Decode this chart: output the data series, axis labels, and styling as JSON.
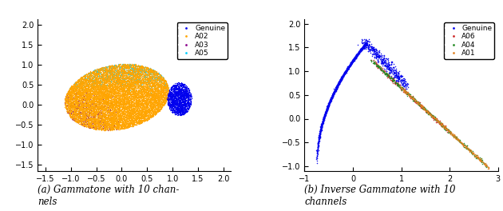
{
  "plot1": {
    "xlim": [
      -1.65,
      2.15
    ],
    "ylim": [
      -1.65,
      2.15
    ],
    "xticks": [
      -1.5,
      -1.0,
      -0.5,
      0.0,
      0.5,
      1.0,
      1.5,
      2.0
    ],
    "yticks": [
      -1.5,
      -1.0,
      -0.5,
      0.0,
      0.5,
      1.0,
      1.5,
      2.0
    ],
    "series": [
      {
        "label": "Genuine",
        "color": "#0000EE"
      },
      {
        "label": "A02",
        "color": "#FFA500"
      },
      {
        "label": "A03",
        "color": "#8B008B"
      },
      {
        "label": "A05",
        "color": "#00CFFF"
      }
    ]
  },
  "plot2": {
    "xlim": [
      -1.0,
      3.0
    ],
    "ylim": [
      -1.1,
      2.1
    ],
    "xticks": [
      -1,
      0,
      1,
      2,
      3
    ],
    "yticks": [
      -1.0,
      -0.5,
      0.0,
      0.5,
      1.0,
      1.5,
      2.0
    ],
    "series": [
      {
        "label": "Genuine",
        "color": "#0000EE"
      },
      {
        "label": "A06",
        "color": "#CC2222"
      },
      {
        "label": "A04",
        "color": "#228B22"
      },
      {
        "label": "A01",
        "color": "#E08020"
      }
    ]
  },
  "caption_fontsize": 8.5,
  "legend_fontsize": 6.5,
  "tick_fontsize": 7
}
